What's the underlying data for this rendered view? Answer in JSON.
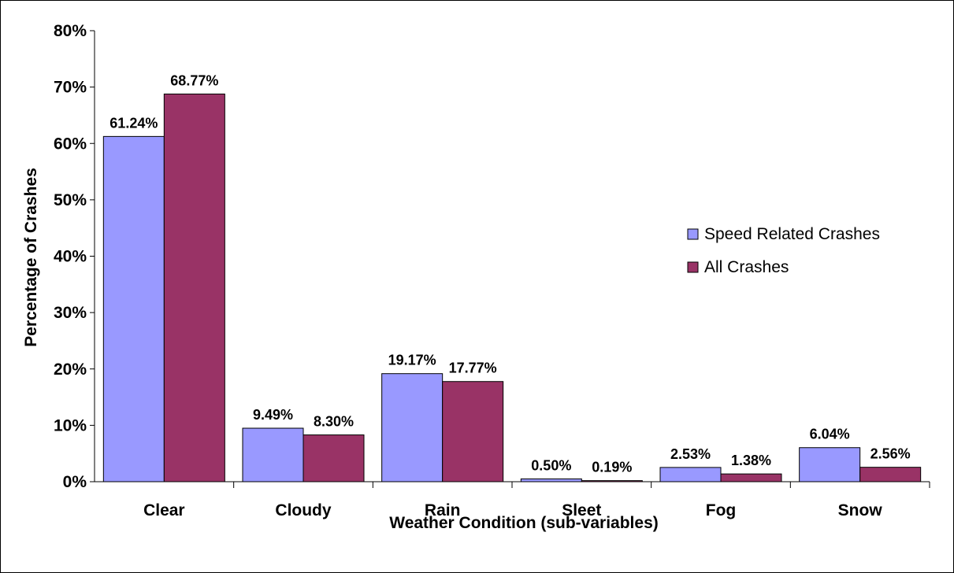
{
  "chart_data": {
    "type": "bar",
    "categories": [
      "Clear",
      "Cloudy",
      "Rain",
      "Sleet",
      "Fog",
      "Snow"
    ],
    "series": [
      {
        "name": "Speed Related Crashes",
        "values": [
          61.24,
          9.49,
          19.17,
          0.5,
          2.53,
          6.04
        ],
        "labels": [
          "61.24%",
          "9.49%",
          "19.17%",
          "0.50%",
          "2.53%",
          "6.04%"
        ],
        "color": "#9999ff"
      },
      {
        "name": "All Crashes",
        "values": [
          68.77,
          8.3,
          17.77,
          0.19,
          1.38,
          2.56
        ],
        "labels": [
          "68.77%",
          "8.30%",
          "17.77%",
          "0.19%",
          "1.38%",
          "2.56%"
        ],
        "color": "#993366"
      }
    ],
    "xlabel": "Weather Condition (sub-variables)",
    "ylabel": "Percentage of Crashes",
    "ylim": [
      0,
      80
    ],
    "yticks": [
      0,
      10,
      20,
      30,
      40,
      50,
      60,
      70,
      80
    ],
    "ytick_labels": [
      "0%",
      "10%",
      "20%",
      "30%",
      "40%",
      "50%",
      "60%",
      "70%",
      "80%"
    ],
    "grid": false,
    "legend_position": "right"
  }
}
